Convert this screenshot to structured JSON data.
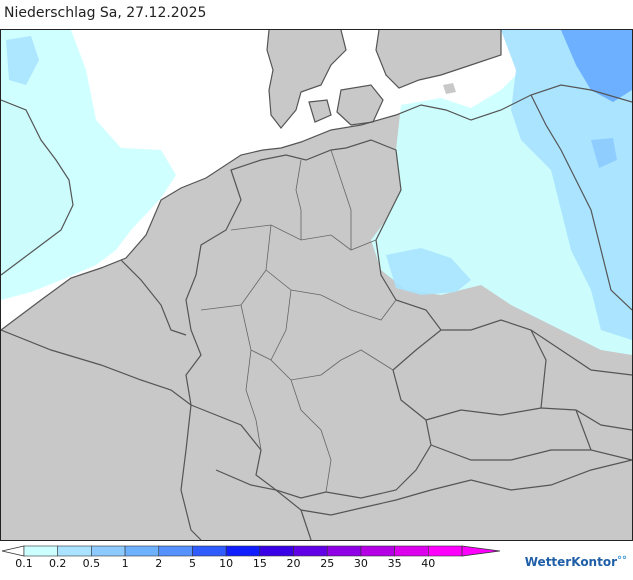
{
  "header": {
    "title": "Niederschlag Sa, 27.12.2025"
  },
  "map": {
    "land_color": "#c8c8c8",
    "sea_color": "#ffffff",
    "border_color": "#555555",
    "precip_light": "#ccffff",
    "precip_medium": "#a9e3ff",
    "precip_heavy": "#66aaff"
  },
  "legend": {
    "unit_steps": [
      "0.1",
      "0.2",
      "0.5",
      "1",
      "2",
      "5",
      "10",
      "15",
      "20",
      "25",
      "30",
      "35",
      "40"
    ],
    "colors": [
      "#ccffff",
      "#a9e3ff",
      "#8ccaff",
      "#6eb1ff",
      "#5592ff",
      "#2f5cff",
      "#0f1fff",
      "#3a00e6",
      "#6200e6",
      "#8f00e6",
      "#b500e6",
      "#dd00ee",
      "#ff00ff"
    ]
  },
  "brand": {
    "name": "WetterKontor",
    "mark": "°°"
  }
}
